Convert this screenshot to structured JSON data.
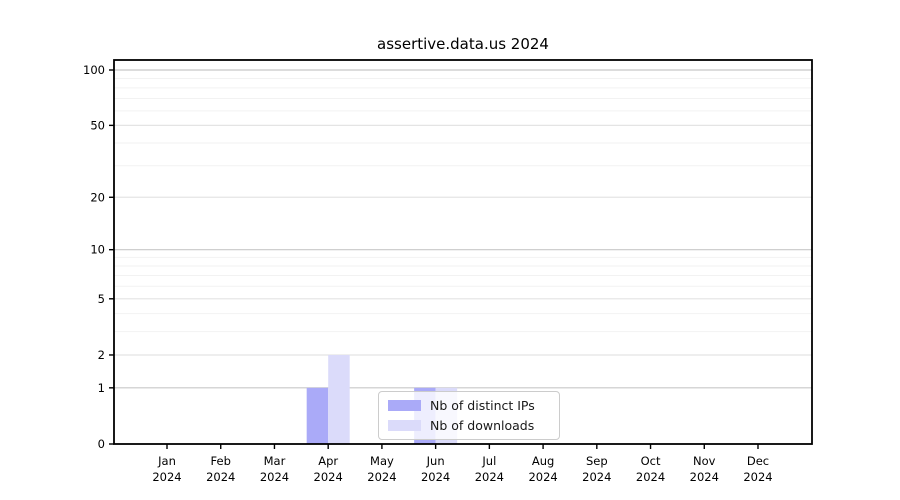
{
  "chart_data": {
    "type": "bar",
    "title": "assertive.data.us 2024",
    "categories": [
      "Jan 2024",
      "Feb 2024",
      "Mar 2024",
      "Apr 2024",
      "May 2024",
      "Jun 2024",
      "Jul 2024",
      "Aug 2024",
      "Sep 2024",
      "Oct 2024",
      "Nov 2024",
      "Dec 2024"
    ],
    "months": [
      "Jan",
      "Feb",
      "Mar",
      "Apr",
      "May",
      "Jun",
      "Jul",
      "Aug",
      "Sep",
      "Oct",
      "Nov",
      "Dec"
    ],
    "year_label": "2024",
    "series": [
      {
        "name": "Nb of distinct IPs",
        "color": "#aaaaf8",
        "values": [
          0,
          0,
          0,
          1,
          0,
          1,
          0,
          0,
          0,
          0,
          0,
          0
        ]
      },
      {
        "name": "Nb of downloads",
        "color": "#dbdbfa",
        "values": [
          0,
          0,
          0,
          2,
          0,
          1,
          0,
          0,
          0,
          0,
          0,
          0
        ]
      }
    ],
    "y_scale": "log1p",
    "ylim": [
      0,
      100
    ],
    "y_ticks_major": [
      0,
      1,
      2,
      5,
      10,
      20,
      50,
      100
    ],
    "y_ticks_minor": [
      3,
      4,
      6,
      7,
      8,
      9,
      30,
      40,
      60,
      70,
      80,
      90
    ],
    "grid": true,
    "legend_position": "lower center",
    "colors": {
      "spine": "#000000",
      "grid_decade": "#c8c8c8",
      "grid_major": "#e4e4e4",
      "grid_minor": "#f2f2f2",
      "background": "#ffffff"
    }
  }
}
